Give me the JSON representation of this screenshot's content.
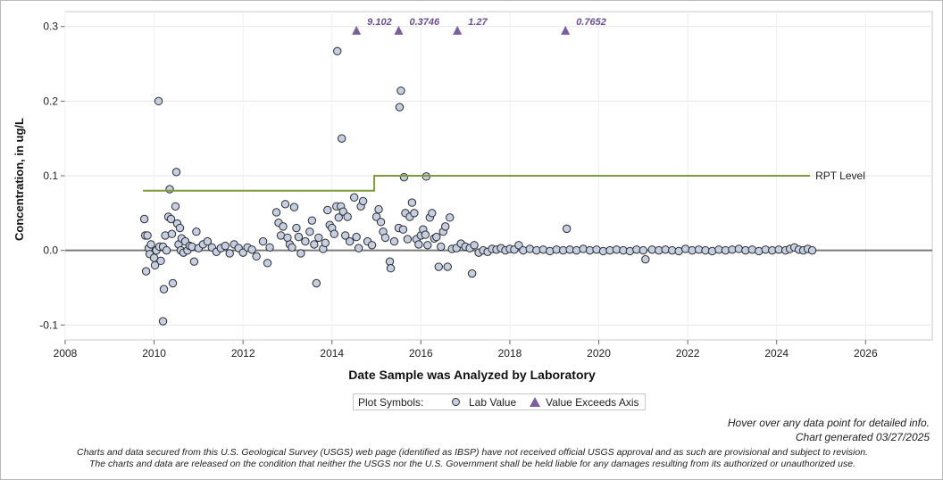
{
  "chart_data": {
    "type": "scatter",
    "title": "",
    "xlabel": "Date Sample was Analyzed by Laboratory",
    "ylabel": "Concentration, in ug/L",
    "xlim": [
      2008,
      2027.5
    ],
    "ylim": [
      -0.12,
      0.32
    ],
    "xticks": [
      "2008",
      "2010",
      "2012",
      "2014",
      "2016",
      "2018",
      "2020",
      "2022",
      "2024",
      "2026"
    ],
    "yticks": [
      "-0.1",
      "0.0",
      "0.1",
      "0.2",
      "0.3"
    ],
    "grid": true,
    "zero_line": true,
    "series": [
      {
        "name": "Lab Value",
        "marker": "circle",
        "color": "#c5cfe3",
        "points": [
          [
            2009.78,
            0.042
          ],
          [
            2009.8,
            0.02
          ],
          [
            2009.82,
            -0.028
          ],
          [
            2009.85,
            0.02
          ],
          [
            2009.88,
            0.003
          ],
          [
            2009.9,
            -0.005
          ],
          [
            2009.93,
            0.008
          ],
          [
            2010.0,
            -0.01
          ],
          [
            2010.02,
            -0.02
          ],
          [
            2010.05,
            0.0
          ],
          [
            2010.1,
            0.2
          ],
          [
            2010.12,
            0.005
          ],
          [
            2010.15,
            -0.014
          ],
          [
            2010.2,
            0.005
          ],
          [
            2010.22,
            -0.052
          ],
          [
            2010.2,
            -0.095
          ],
          [
            2010.25,
            0.02
          ],
          [
            2010.28,
            0.0
          ],
          [
            2010.32,
            0.045
          ],
          [
            2010.35,
            0.082
          ],
          [
            2010.38,
            0.042
          ],
          [
            2010.4,
            0.022
          ],
          [
            2010.42,
            -0.044
          ],
          [
            2010.48,
            0.059
          ],
          [
            2010.5,
            0.105
          ],
          [
            2010.52,
            0.036
          ],
          [
            2010.55,
            0.008
          ],
          [
            2010.58,
            0.03
          ],
          [
            2010.6,
            0.0
          ],
          [
            2010.62,
            0.016
          ],
          [
            2010.66,
            -0.003
          ],
          [
            2010.7,
            0.012
          ],
          [
            2010.75,
            0.0
          ],
          [
            2010.8,
            0.006
          ],
          [
            2010.85,
            0.005
          ],
          [
            2010.9,
            -0.015
          ],
          [
            2010.95,
            0.025
          ],
          [
            2011.0,
            0.003
          ],
          [
            2011.1,
            0.008
          ],
          [
            2011.2,
            0.012
          ],
          [
            2011.3,
            0.004
          ],
          [
            2011.4,
            -0.002
          ],
          [
            2011.5,
            0.003
          ],
          [
            2011.6,
            0.006
          ],
          [
            2011.7,
            -0.004
          ],
          [
            2011.8,
            0.008
          ],
          [
            2011.9,
            0.003
          ],
          [
            2012.0,
            -0.003
          ],
          [
            2012.1,
            0.004
          ],
          [
            2012.2,
            0.001
          ],
          [
            2012.3,
            -0.008
          ],
          [
            2012.45,
            0.012
          ],
          [
            2012.55,
            -0.017
          ],
          [
            2012.6,
            0.004
          ],
          [
            2012.75,
            0.051
          ],
          [
            2012.8,
            0.037
          ],
          [
            2012.85,
            0.02
          ],
          [
            2012.9,
            0.032
          ],
          [
            2012.95,
            0.062
          ],
          [
            2013.0,
            0.017
          ],
          [
            2013.05,
            0.008
          ],
          [
            2013.1,
            0.004
          ],
          [
            2013.15,
            0.058
          ],
          [
            2013.2,
            0.03
          ],
          [
            2013.25,
            0.018
          ],
          [
            2013.3,
            -0.004
          ],
          [
            2013.4,
            0.012
          ],
          [
            2013.5,
            0.025
          ],
          [
            2013.55,
            0.04
          ],
          [
            2013.6,
            0.008
          ],
          [
            2013.65,
            -0.044
          ],
          [
            2013.7,
            0.017
          ],
          [
            2013.8,
            0.002
          ],
          [
            2013.85,
            0.01
          ],
          [
            2013.9,
            0.054
          ],
          [
            2013.95,
            0.034
          ],
          [
            2014.0,
            0.03
          ],
          [
            2014.05,
            0.022
          ],
          [
            2014.1,
            0.059
          ],
          [
            2014.12,
            0.267
          ],
          [
            2014.15,
            0.044
          ],
          [
            2014.2,
            0.059
          ],
          [
            2014.22,
            0.15
          ],
          [
            2014.25,
            0.052
          ],
          [
            2014.3,
            0.02
          ],
          [
            2014.35,
            0.045
          ],
          [
            2014.4,
            0.012
          ],
          [
            2014.5,
            0.071
          ],
          [
            2014.55,
            0.018
          ],
          [
            2014.6,
            0.003
          ],
          [
            2014.65,
            0.059
          ],
          [
            2014.7,
            0.066
          ],
          [
            2014.8,
            0.012
          ],
          [
            2014.9,
            0.007
          ],
          [
            2015.0,
            0.045
          ],
          [
            2015.05,
            0.055
          ],
          [
            2015.1,
            0.038
          ],
          [
            2015.15,
            0.025
          ],
          [
            2015.2,
            0.017
          ],
          [
            2015.3,
            -0.015
          ],
          [
            2015.32,
            -0.024
          ],
          [
            2015.4,
            0.012
          ],
          [
            2015.5,
            0.03
          ],
          [
            2015.52,
            0.192
          ],
          [
            2015.55,
            0.214
          ],
          [
            2015.6,
            0.028
          ],
          [
            2015.62,
            0.098
          ],
          [
            2015.65,
            0.05
          ],
          [
            2015.7,
            0.015
          ],
          [
            2015.75,
            0.045
          ],
          [
            2015.8,
            0.064
          ],
          [
            2015.85,
            0.05
          ],
          [
            2015.9,
            0.015
          ],
          [
            2015.95,
            0.008
          ],
          [
            2016.0,
            0.02
          ],
          [
            2016.05,
            0.028
          ],
          [
            2016.1,
            0.021
          ],
          [
            2016.12,
            0.099
          ],
          [
            2016.15,
            0.007
          ],
          [
            2016.2,
            0.044
          ],
          [
            2016.25,
            0.05
          ],
          [
            2016.3,
            0.016
          ],
          [
            2016.35,
            0.018
          ],
          [
            2016.4,
            -0.022
          ],
          [
            2016.45,
            0.005
          ],
          [
            2016.5,
            0.025
          ],
          [
            2016.55,
            0.032
          ],
          [
            2016.6,
            -0.022
          ],
          [
            2016.65,
            0.044
          ],
          [
            2016.7,
            0.002
          ],
          [
            2016.8,
            0.003
          ],
          [
            2016.9,
            0.009
          ],
          [
            2017.0,
            0.005
          ],
          [
            2017.1,
            0.003
          ],
          [
            2017.15,
            -0.031
          ],
          [
            2017.2,
            0.007
          ],
          [
            2017.3,
            -0.003
          ],
          [
            2017.4,
            0.0
          ],
          [
            2017.5,
            -0.002
          ],
          [
            2017.6,
            0.002
          ],
          [
            2017.7,
            0.001
          ],
          [
            2017.8,
            0.003
          ],
          [
            2017.9,
            0.0
          ],
          [
            2018.0,
            0.002
          ],
          [
            2018.1,
            0.001
          ],
          [
            2018.2,
            0.007
          ],
          [
            2018.3,
            0.0
          ],
          [
            2018.45,
            0.002
          ],
          [
            2018.6,
            0.0
          ],
          [
            2018.75,
            0.001
          ],
          [
            2018.9,
            -0.001
          ],
          [
            2019.05,
            0.001
          ],
          [
            2019.2,
            0.0
          ],
          [
            2019.28,
            0.029
          ],
          [
            2019.35,
            0.001
          ],
          [
            2019.5,
            0.0
          ],
          [
            2019.65,
            0.002
          ],
          [
            2019.8,
            0.0
          ],
          [
            2019.95,
            0.001
          ],
          [
            2020.1,
            -0.001
          ],
          [
            2020.25,
            0.0
          ],
          [
            2020.4,
            0.001
          ],
          [
            2020.55,
            0.0
          ],
          [
            2020.7,
            -0.001
          ],
          [
            2020.85,
            0.001
          ],
          [
            2021.0,
            0.0
          ],
          [
            2021.05,
            -0.012
          ],
          [
            2021.2,
            0.001
          ],
          [
            2021.35,
            0.0
          ],
          [
            2021.5,
            0.001
          ],
          [
            2021.65,
            0.0
          ],
          [
            2021.8,
            -0.001
          ],
          [
            2021.95,
            0.002
          ],
          [
            2022.1,
            0.0
          ],
          [
            2022.25,
            0.001
          ],
          [
            2022.4,
            0.0
          ],
          [
            2022.55,
            -0.001
          ],
          [
            2022.7,
            0.001
          ],
          [
            2022.85,
            0.0
          ],
          [
            2023.0,
            0.001
          ],
          [
            2023.15,
            0.002
          ],
          [
            2023.3,
            0.0
          ],
          [
            2023.45,
            0.001
          ],
          [
            2023.6,
            -0.001
          ],
          [
            2023.75,
            0.001
          ],
          [
            2023.9,
            0.0
          ],
          [
            2024.05,
            0.001
          ],
          [
            2024.2,
            0.0
          ],
          [
            2024.3,
            0.002
          ],
          [
            2024.4,
            0.004
          ],
          [
            2024.5,
            0.001
          ],
          [
            2024.6,
            0.0
          ],
          [
            2024.7,
            0.002
          ],
          [
            2024.8,
            0.0
          ]
        ]
      },
      {
        "name": "Value Exceeds Axis",
        "marker": "triangle",
        "color": "#7a5ea0",
        "points": [
          {
            "x": 2014.55,
            "y": 0.295,
            "label": "9.102"
          },
          {
            "x": 2015.5,
            "y": 0.295,
            "label": "0.3746"
          },
          {
            "x": 2016.82,
            "y": 0.295,
            "label": "1.27"
          },
          {
            "x": 2019.25,
            "y": 0.295,
            "label": "0.7652"
          }
        ]
      },
      {
        "name": "RPT Level",
        "type": "step",
        "color": "#7f9a3c",
        "points": [
          [
            2009.75,
            0.08
          ],
          [
            2014.95,
            0.08
          ],
          [
            2014.95,
            0.1
          ],
          [
            2024.75,
            0.1
          ]
        ],
        "label": "RPT Level"
      }
    ]
  },
  "legend": {
    "heading": "Plot Symbols:",
    "items": [
      "Lab Value",
      "Value Exceeds Axis"
    ]
  },
  "footer": {
    "hover_note": "Hover over any data point for detailed info.",
    "generated": "Chart generated 03/27/2025",
    "disclaimer_1": "Charts and data secured from this U.S. Geological Survey (USGS) web page (identified as IBSP) have not received official USGS approval and as such are provisional and subject to revision.",
    "disclaimer_2": "The charts and data are released on the condition that neither the USGS nor the U.S. Government shall be held liable for any damages resulting from its authorized or unauthorized use."
  }
}
